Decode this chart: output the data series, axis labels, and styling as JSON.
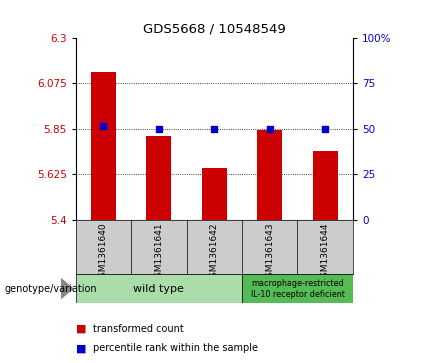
{
  "title": "GDS5668 / 10548549",
  "samples": [
    "GSM1361640",
    "GSM1361641",
    "GSM1361642",
    "GSM1361643",
    "GSM1361644"
  ],
  "bar_values": [
    6.13,
    5.815,
    5.655,
    5.845,
    5.74
  ],
  "dot_values": [
    5.862,
    5.847,
    5.847,
    5.848,
    5.848
  ],
  "ylim_left": [
    5.4,
    6.3
  ],
  "ylim_right": [
    0,
    100
  ],
  "yticks_left": [
    5.4,
    5.625,
    5.85,
    6.075,
    6.3
  ],
  "yticks_right": [
    0,
    25,
    50,
    75,
    100
  ],
  "ytick_labels_left": [
    "5.4",
    "5.625",
    "5.85",
    "6.075",
    "6.3"
  ],
  "ytick_labels_right": [
    "0",
    "25",
    "50",
    "75",
    "100%"
  ],
  "bar_color": "#cc0000",
  "dot_color": "#0000cc",
  "bg_plot": "#ffffff",
  "bg_sample_row": "#cccccc",
  "bg_wild_type": "#aaddaa",
  "bg_macrophage": "#55bb55",
  "wild_type_label": "wild type",
  "macrophage_label": "macrophage-restricted\nIL-10 receptor deficient",
  "genotype_label": "genotype/variation",
  "legend_bar": "transformed count",
  "legend_dot": "percentile rank within the sample",
  "bar_width": 0.45
}
